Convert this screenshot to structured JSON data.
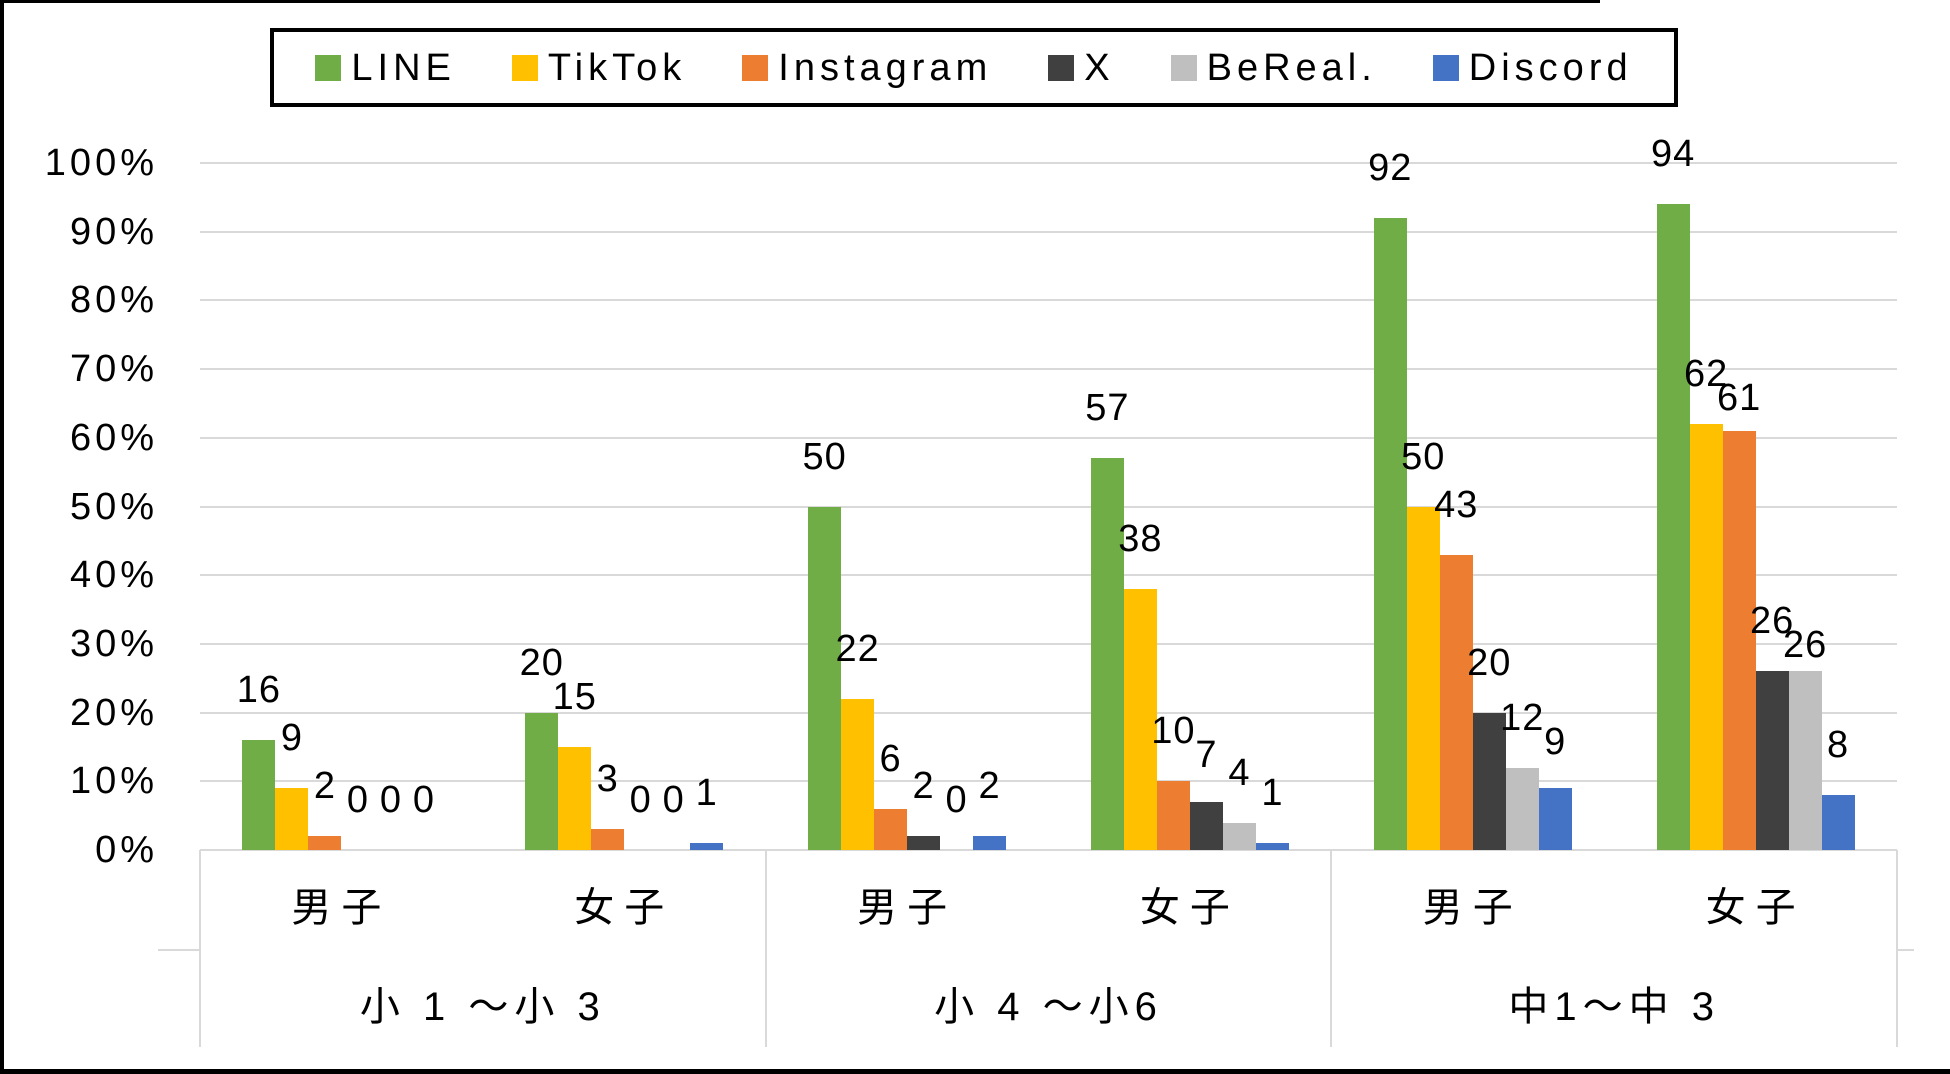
{
  "chart_data": {
    "type": "bar",
    "title": "",
    "unit": "%",
    "grid": true,
    "data_labels_visible": true,
    "y_axis": {
      "min": 0,
      "max": 100,
      "step": 10,
      "tick_labels": [
        "0%",
        "10%",
        "20%",
        "30%",
        "40%",
        "50%",
        "60%",
        "70%",
        "80%",
        "90%",
        "100%"
      ]
    },
    "legend": {
      "position": "top",
      "entries": [
        {
          "name": "LINE",
          "color": "#70AD47"
        },
        {
          "name": "TikTok",
          "color": "#FFC000"
        },
        {
          "name": "Instagram",
          "color": "#ED7D31"
        },
        {
          "name": "X",
          "color": "#404040"
        },
        {
          "name": "BeReal.",
          "color": "#BFBFBF"
        },
        {
          "name": "Discord",
          "color": "#4472C4"
        }
      ]
    },
    "groups": [
      {
        "label": "小 1 〜小 3",
        "subgroups": [
          {
            "label": "男子",
            "values": [
              16,
              9,
              2,
              0,
              0,
              0
            ]
          },
          {
            "label": "女子",
            "values": [
              20,
              15,
              3,
              0,
              0,
              1
            ]
          }
        ]
      },
      {
        "label": "小 4 〜小6",
        "subgroups": [
          {
            "label": "男子",
            "values": [
              50,
              22,
              6,
              2,
              0,
              2
            ]
          },
          {
            "label": "女子",
            "values": [
              57,
              38,
              10,
              7,
              4,
              1
            ]
          }
        ]
      },
      {
        "label": "中1〜中 3",
        "subgroups": [
          {
            "label": "男子",
            "values": [
              92,
              50,
              43,
              20,
              12,
              9
            ]
          },
          {
            "label": "女子",
            "values": [
              94,
              62,
              61,
              26,
              26,
              8
            ]
          }
        ]
      }
    ],
    "colors": {
      "gridline": "#D9D9D9",
      "axis_table_line": "#D9D9D9",
      "label_text": "#000000",
      "frame_border": "#000000",
      "background": "#FFFFFF"
    }
  }
}
